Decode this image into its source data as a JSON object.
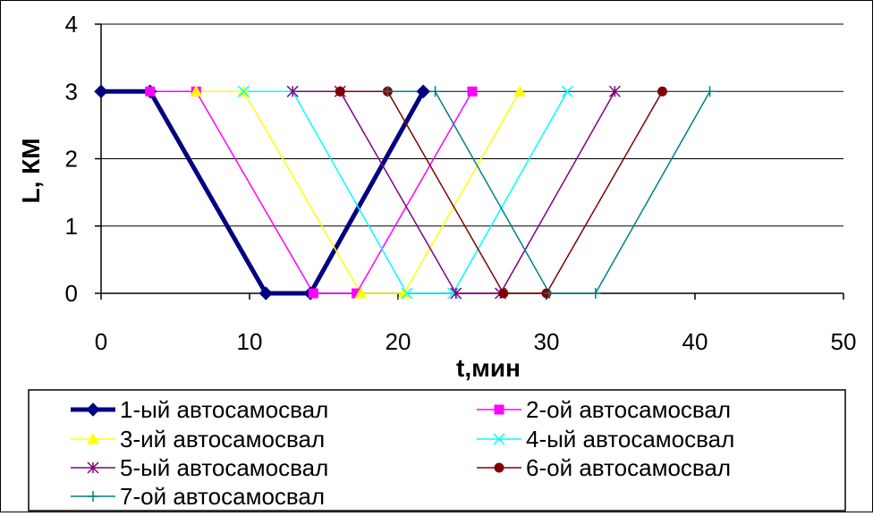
{
  "chart_data": {
    "type": "line",
    "xlabel": "t,мин",
    "ylabel": "L, КМ",
    "xlim": [
      0,
      50
    ],
    "ylim": [
      0,
      4
    ],
    "xticks": [
      "0",
      "10",
      "20",
      "30",
      "40",
      "50"
    ],
    "yticks": [
      "0",
      "1",
      "2",
      "3",
      "4"
    ],
    "grid": "horizontal",
    "legend": "bottom",
    "series": [
      {
        "name": "1-ый автосамосвал",
        "color": "#000080",
        "marker": "diamond",
        "width": "thick",
        "x": [
          0,
          3.3,
          11.1,
          14.1,
          21.7
        ],
        "y": [
          3,
          3,
          0,
          0,
          3
        ]
      },
      {
        "name": "2-ой автосамосвал",
        "color": "#FF00FF",
        "marker": "square",
        "x": [
          3.3,
          6.4,
          14.3,
          17.2,
          25.0
        ],
        "y": [
          3,
          3,
          0,
          0,
          3
        ]
      },
      {
        "name": "3-ий автосамосвал",
        "color": "#FFFF00",
        "marker": "triangle",
        "x": [
          6.4,
          9.6,
          17.5,
          20.4,
          28.2
        ],
        "y": [
          3,
          3,
          0,
          0,
          3
        ]
      },
      {
        "name": "4-ый автосамосвал",
        "color": "#00FFFF",
        "marker": "x",
        "x": [
          9.6,
          12.9,
          20.6,
          23.7,
          31.4
        ],
        "y": [
          3,
          3,
          0,
          0,
          3
        ]
      },
      {
        "name": "5-ый автосамосвал",
        "color": "#800080",
        "marker": "star",
        "x": [
          12.9,
          16.1,
          23.9,
          26.9,
          34.6
        ],
        "y": [
          3,
          3,
          0,
          0,
          3
        ]
      },
      {
        "name": "6-ой автосамосвал",
        "color": "#800000",
        "marker": "circle",
        "x": [
          16.1,
          19.3,
          27.1,
          30.0,
          37.8
        ],
        "y": [
          3,
          3,
          0,
          0,
          3
        ]
      },
      {
        "name": "7-ой автосамосвал",
        "color": "#008080",
        "marker": "plus",
        "x": [
          19.3,
          22.5,
          30.2,
          33.3,
          41.0
        ],
        "y": [
          3,
          3,
          0,
          0,
          3
        ]
      }
    ]
  }
}
